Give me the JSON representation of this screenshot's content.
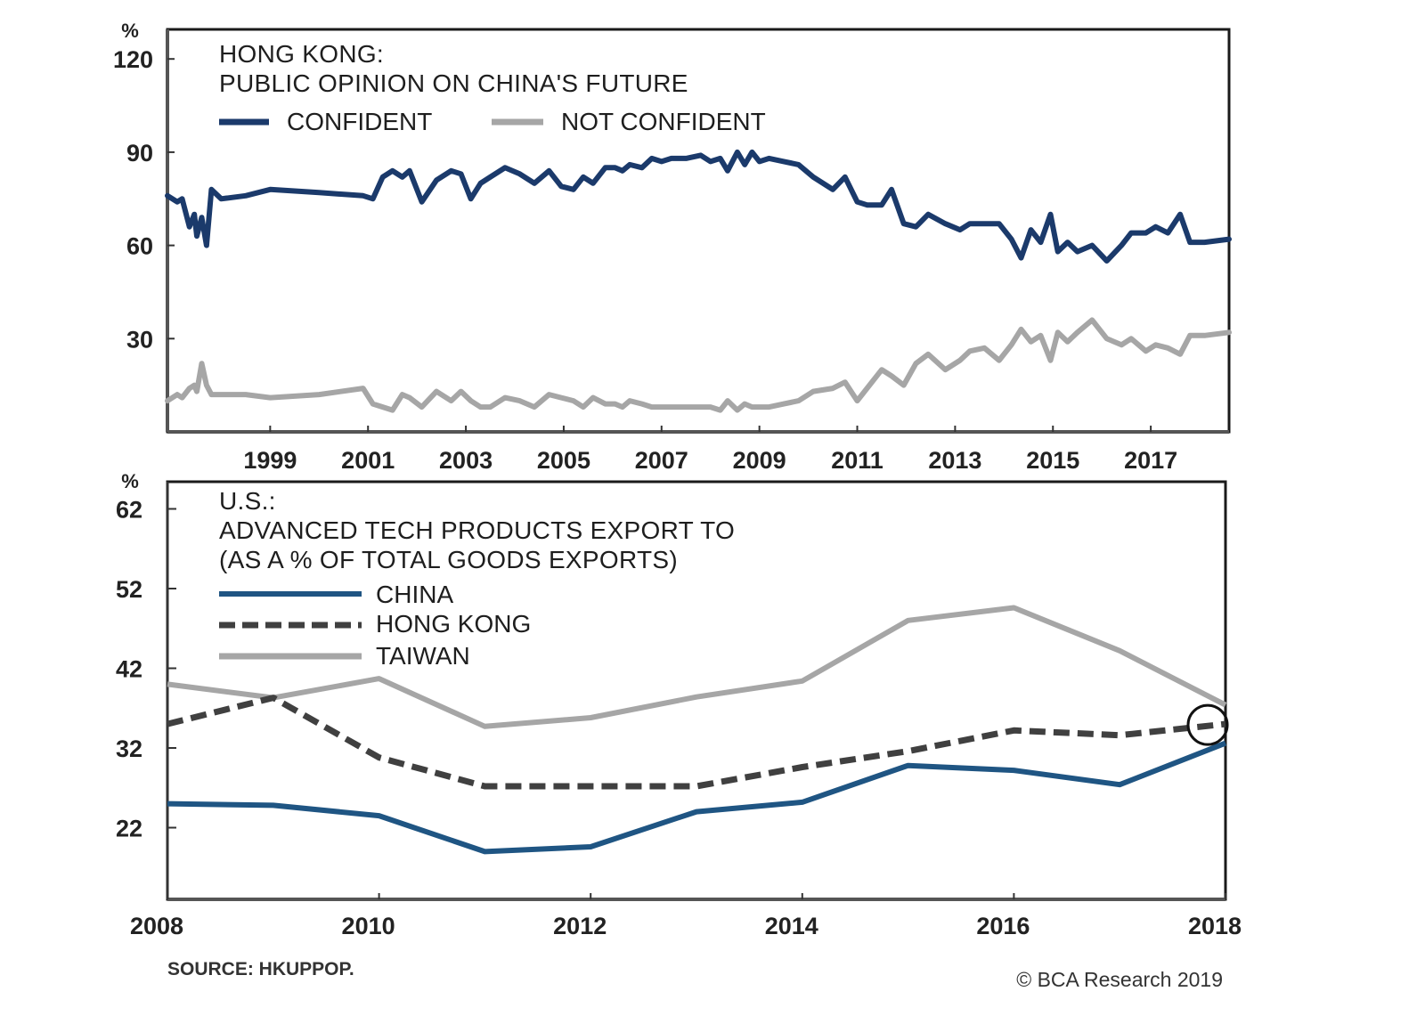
{
  "chart_data": [
    {
      "type": "line",
      "title": "HONG KONG:",
      "subtitle": "PUBLIC OPINION ON CHINA'S FUTURE",
      "ylabel": "%",
      "xlabel": "",
      "ylim": [
        0,
        120
      ],
      "xlim": [
        1996.9,
        2018.6
      ],
      "yticks": [
        30,
        60,
        90,
        120
      ],
      "xticks": [
        1999,
        2001,
        2003,
        2005,
        2007,
        2009,
        2011,
        2013,
        2015,
        2017
      ],
      "grid": false,
      "legend_position": "top-left",
      "colors": {
        "confident": "#1b3a6b",
        "not_confident": "#a6a6a6"
      },
      "series": [
        {
          "name": "CONFIDENT",
          "x": [
            1996.9,
            1997.1,
            1997.2,
            1997.35,
            1997.45,
            1997.5,
            1997.6,
            1997.7,
            1997.8,
            1998.0,
            1998.5,
            1999.0,
            2000.0,
            2000.9,
            2001.1,
            2001.3,
            2001.5,
            2001.7,
            2001.85,
            2002.1,
            2002.4,
            2002.7,
            2002.9,
            2003.1,
            2003.3,
            2003.5,
            2003.8,
            2004.1,
            2004.4,
            2004.7,
            2004.95,
            2005.2,
            2005.4,
            2005.6,
            2005.85,
            2006.05,
            2006.2,
            2006.35,
            2006.6,
            2006.8,
            2007.0,
            2007.2,
            2007.5,
            2007.8,
            2008.0,
            2008.2,
            2008.35,
            2008.55,
            2008.7,
            2008.85,
            2009.0,
            2009.2,
            2009.5,
            2009.8,
            2010.1,
            2010.5,
            2010.75,
            2011.0,
            2011.2,
            2011.5,
            2011.7,
            2011.95,
            2012.2,
            2012.45,
            2012.8,
            2013.1,
            2013.3,
            2013.6,
            2013.9,
            2014.15,
            2014.35,
            2014.55,
            2014.75,
            2014.95,
            2015.1,
            2015.3,
            2015.5,
            2015.8,
            2016.1,
            2016.4,
            2016.6,
            2016.9,
            2017.1,
            2017.35,
            2017.6,
            2017.8,
            2018.1,
            2018.6
          ],
          "y": [
            76,
            74,
            75,
            66,
            70,
            63,
            69,
            60,
            78,
            75,
            76,
            78,
            77,
            76,
            75,
            82,
            84,
            82,
            84,
            74,
            81,
            84,
            83,
            75,
            80,
            82,
            85,
            83,
            80,
            84,
            79,
            78,
            82,
            80,
            85,
            85,
            84,
            86,
            85,
            88,
            87,
            88,
            88,
            89,
            87,
            88,
            84,
            90,
            86,
            90,
            87,
            88,
            87,
            86,
            82,
            78,
            82,
            74,
            73,
            73,
            78,
            67,
            66,
            70,
            67,
            65,
            67,
            67,
            67,
            62,
            56,
            65,
            61,
            70,
            58,
            61,
            58,
            60,
            55,
            60,
            64,
            64,
            66,
            64,
            70,
            61,
            61,
            62
          ]
        },
        {
          "name": "NOT CONFIDENT",
          "x": [
            1996.9,
            1997.1,
            1997.2,
            1997.35,
            1997.45,
            1997.5,
            1997.6,
            1997.7,
            1997.8,
            1998.0,
            1998.5,
            1999.0,
            2000.0,
            2000.9,
            2001.1,
            2001.3,
            2001.5,
            2001.7,
            2001.85,
            2002.1,
            2002.4,
            2002.7,
            2002.9,
            2003.1,
            2003.3,
            2003.5,
            2003.8,
            2004.1,
            2004.4,
            2004.7,
            2004.95,
            2005.2,
            2005.4,
            2005.6,
            2005.85,
            2006.05,
            2006.2,
            2006.35,
            2006.6,
            2006.8,
            2007.0,
            2007.2,
            2007.5,
            2007.8,
            2008.0,
            2008.2,
            2008.35,
            2008.55,
            2008.7,
            2008.85,
            2009.0,
            2009.2,
            2009.5,
            2009.8,
            2010.1,
            2010.5,
            2010.75,
            2011.0,
            2011.2,
            2011.5,
            2011.7,
            2011.95,
            2012.2,
            2012.45,
            2012.8,
            2013.1,
            2013.3,
            2013.6,
            2013.9,
            2014.15,
            2014.35,
            2014.55,
            2014.75,
            2014.95,
            2015.1,
            2015.3,
            2015.5,
            2015.8,
            2016.1,
            2016.4,
            2016.6,
            2016.9,
            2017.1,
            2017.35,
            2017.6,
            2017.8,
            2018.1,
            2018.6
          ],
          "y": [
            10,
            12,
            11,
            14,
            15,
            13,
            22,
            15,
            12,
            12,
            12,
            11,
            12,
            14,
            9,
            8,
            7,
            12,
            11,
            8,
            13,
            10,
            13,
            10,
            8,
            8,
            11,
            10,
            8,
            12,
            11,
            10,
            8,
            11,
            9,
            9,
            8,
            10,
            9,
            8,
            8,
            8,
            8,
            8,
            8,
            7,
            10,
            7,
            9,
            8,
            8,
            8,
            9,
            10,
            13,
            14,
            16,
            10,
            14,
            20,
            18,
            15,
            22,
            25,
            20,
            23,
            26,
            27,
            23,
            28,
            33,
            29,
            31,
            23,
            32,
            29,
            32,
            36,
            30,
            28,
            30,
            26,
            28,
            27,
            25,
            31,
            31,
            32
          ]
        }
      ]
    },
    {
      "type": "line",
      "title": "U.S.:",
      "subtitle": "ADVANCED TECH PRODUCTS EXPORT TO",
      "subtitle2": "(AS A % OF TOTAL GOODS EXPORTS)",
      "ylabel": "%",
      "xlabel": "",
      "ylim": [
        13,
        65
      ],
      "xlim": [
        2008,
        2018
      ],
      "yticks": [
        22,
        32,
        42,
        52,
        62
      ],
      "xticks": [
        2008,
        2010,
        2012,
        2014,
        2016,
        2018
      ],
      "grid": false,
      "legend_position": "top-left",
      "annotation": "circle at 2018 highlighting convergence",
      "colors": {
        "china": "#1f5583",
        "hong_kong": "#404040",
        "taiwan": "#a6a6a6"
      },
      "categories": [
        2008,
        2009,
        2010,
        2011,
        2012,
        2013,
        2014,
        2015,
        2016,
        2017,
        2018
      ],
      "series": [
        {
          "name": "CHINA",
          "style": "solid",
          "values": [
            25.0,
            24.8,
            23.5,
            19.0,
            19.6,
            24.0,
            25.2,
            29.8,
            29.2,
            27.4,
            32.6
          ]
        },
        {
          "name": "HONG KONG",
          "style": "dashed",
          "values": [
            35.0,
            38.3,
            30.8,
            27.2,
            27.2,
            27.2,
            29.6,
            31.6,
            34.2,
            33.6,
            35.0
          ]
        },
        {
          "name": "TAIWAN",
          "style": "solid",
          "values": [
            40.0,
            38.3,
            40.7,
            34.7,
            35.8,
            38.4,
            40.4,
            48.0,
            49.6,
            44.2,
            37.4
          ]
        }
      ]
    }
  ],
  "labels": {
    "top_y_unit": "%",
    "top_title_line1": "HONG KONG:",
    "top_title_line2": "PUBLIC OPINION ON CHINA'S FUTURE",
    "top_legend": [
      "CONFIDENT",
      "NOT CONFIDENT"
    ],
    "top_yticks": [
      "120",
      "90",
      "60",
      "30"
    ],
    "top_xticks": [
      "1999",
      "2001",
      "2003",
      "2005",
      "2007",
      "2009",
      "2011",
      "2013",
      "2015",
      "2017"
    ],
    "bottom_y_unit": "%",
    "bottom_title_line1": "U.S.:",
    "bottom_title_line2": "ADVANCED TECH PRODUCTS EXPORT TO",
    "bottom_title_line3": "(AS A % OF TOTAL GOODS EXPORTS)",
    "bottom_legend": [
      "CHINA",
      "HONG KONG",
      "TAIWAN"
    ],
    "bottom_yticks": [
      "62",
      "52",
      "42",
      "32",
      "22"
    ],
    "bottom_xticks": [
      "2008",
      "2010",
      "2012",
      "2014",
      "2016",
      "2018"
    ]
  },
  "footer": {
    "source": "SOURCE: HKUPPOP.",
    "credit": "© BCA Research 2019"
  }
}
